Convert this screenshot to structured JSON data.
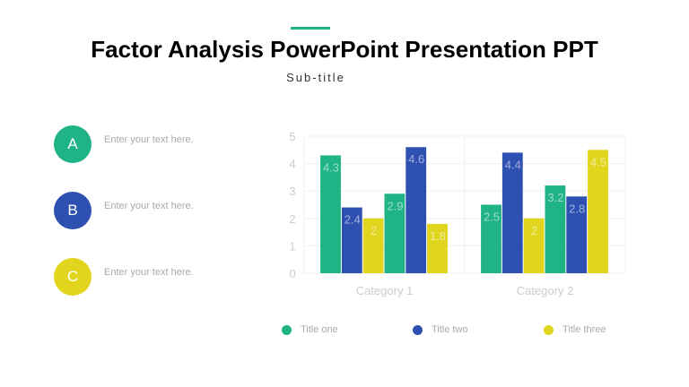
{
  "header": {
    "title": "Factor Analysis PowerPoint Presentation PPT",
    "subtitle": "Sub-title",
    "accent_color": "#1fb386"
  },
  "items": [
    {
      "letter": "A",
      "text": "Enter your text here.",
      "color": "#1fb386"
    },
    {
      "letter": "B",
      "text": "Enter your text here.",
      "color": "#2e50b0"
    },
    {
      "letter": "C",
      "text": "Enter your text here.",
      "color": "#e2d51e"
    }
  ],
  "chart_data": {
    "type": "bar",
    "categories": [
      "Category 1",
      "Category 2"
    ],
    "ylim": [
      0,
      5
    ],
    "yticks": [
      "0",
      "1",
      "2",
      "3",
      "4",
      "5"
    ],
    "grid": true,
    "legend_placement": "bottom",
    "legend": [
      {
        "name": "Title one",
        "color": "#1fb386"
      },
      {
        "name": "Title two",
        "color": "#2e50b0"
      },
      {
        "name": "Title three",
        "color": "#e2d51e"
      }
    ],
    "series": [
      {
        "color": "#1fb386",
        "values": [
          4.3,
          2.5
        ]
      },
      {
        "color": "#2e50b0",
        "values": [
          2.4,
          4.4
        ]
      },
      {
        "color": "#e2d51e",
        "values": [
          2,
          2
        ]
      },
      {
        "color": "#1fb386",
        "values": [
          2.9,
          3.2
        ]
      },
      {
        "color": "#2e50b0",
        "values": [
          4.6,
          2.8
        ]
      },
      {
        "color": "#e2d51e",
        "values": [
          1.8,
          4.5
        ]
      }
    ]
  }
}
